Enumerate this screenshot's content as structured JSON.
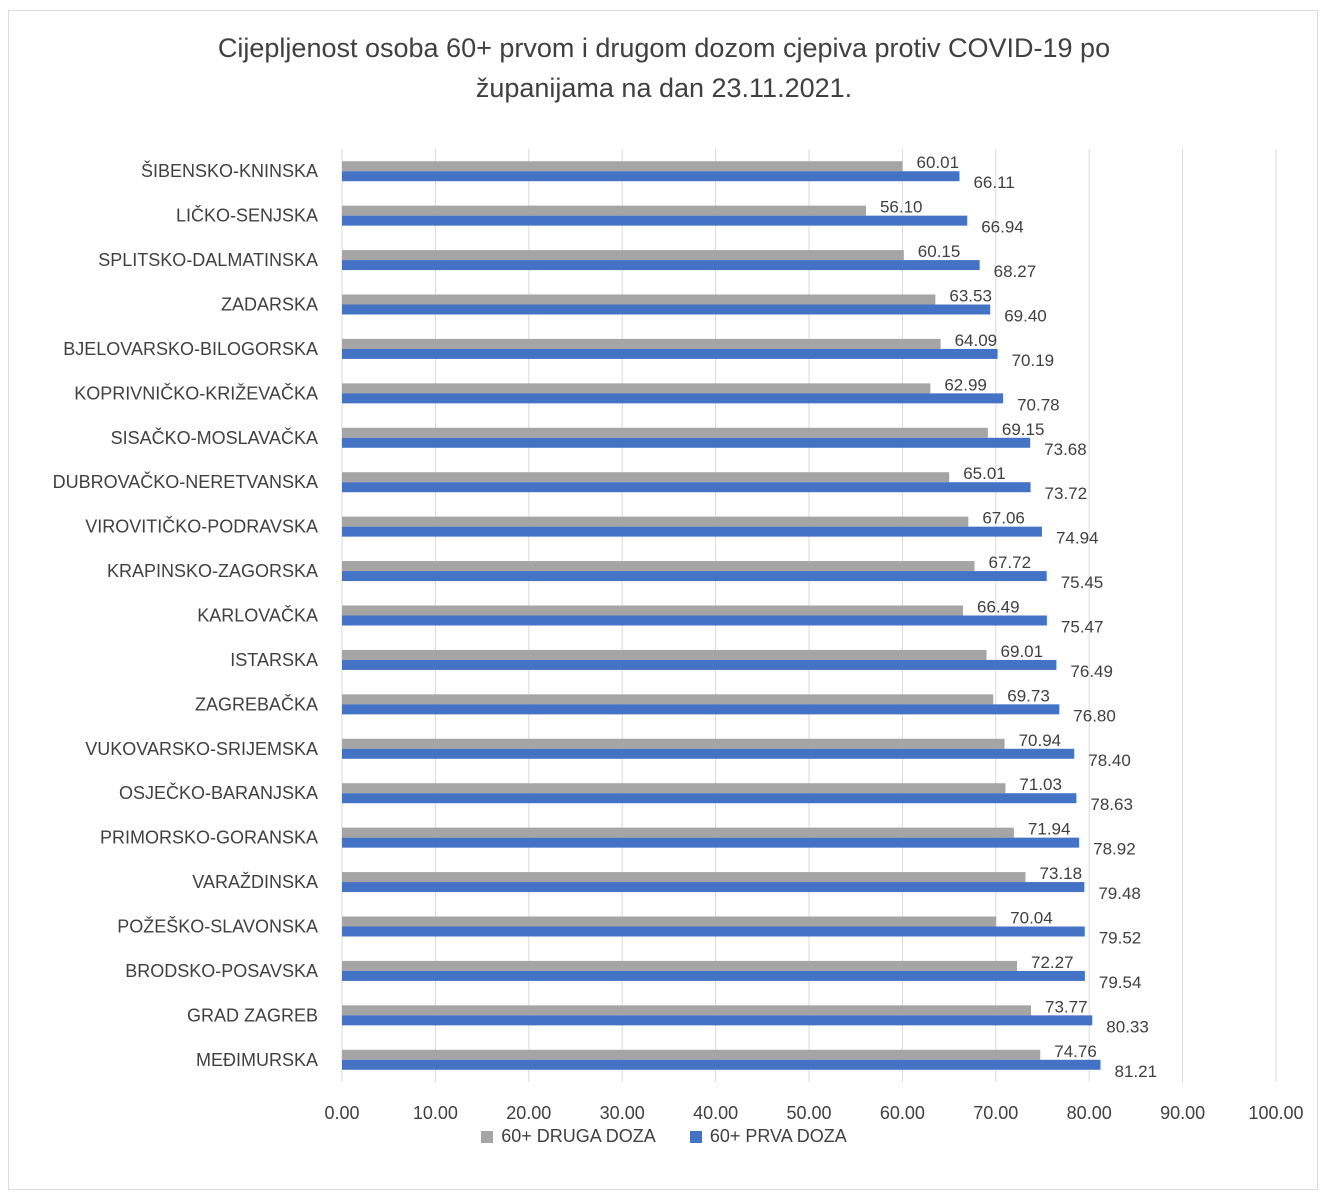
{
  "chart_data": {
    "type": "bar",
    "orientation": "horizontal",
    "title": "Cijepljenost osoba 60+ prvom i drugom dozom cjepiva protiv COVID-19 po\nžupanijama na dan 23.11.2021.",
    "categories": [
      "ŠIBENSKO-KNINSKA",
      "LIČKO-SENJSKA",
      "SPLITSKO-DALMATINSKA",
      "ZADARSKA",
      "BJELOVARSKO-BILOGORSKA",
      "KOPRIVNIČKO-KRIŽEVAČKA",
      "SISAČKO-MOSLAVAČKA",
      "DUBROVAČKO-NERETVANSKA",
      "VIROVITIČKO-PODRAVSKA",
      "KRAPINSKO-ZAGORSKA",
      "KARLOVAČKA",
      "ISTARSKA",
      "ZAGREBAČKA",
      "VUKOVARSKO-SRIJEMSKA",
      "OSJEČKO-BARANJSKA",
      "PRIMORSKO-GORANSKA",
      "VARAŽDINSKA",
      "POŽEŠKO-SLAVONSKA",
      "BRODSKO-POSAVSKA",
      "GRAD ZAGREB",
      "MEĐIMURSKA"
    ],
    "series": [
      {
        "name": "60+ DRUGA DOZA",
        "color": "#a5a5a5",
        "values": [
          60.01,
          56.1,
          60.15,
          63.53,
          64.09,
          62.99,
          69.15,
          65.01,
          67.06,
          67.72,
          66.49,
          69.01,
          69.73,
          70.94,
          71.03,
          71.94,
          73.18,
          70.04,
          72.27,
          73.77,
          74.76
        ]
      },
      {
        "name": "60+ PRVA DOZA",
        "color": "#4472c4",
        "values": [
          66.11,
          66.94,
          68.27,
          69.4,
          70.19,
          70.78,
          73.68,
          73.72,
          74.94,
          75.45,
          75.47,
          76.49,
          76.8,
          78.4,
          78.63,
          78.92,
          79.48,
          79.52,
          79.54,
          80.33,
          81.21
        ]
      }
    ],
    "xlim": [
      0,
      100
    ],
    "xticks": [
      "0.00",
      "10.00",
      "20.00",
      "30.00",
      "40.00",
      "50.00",
      "60.00",
      "70.00",
      "80.00",
      "90.00",
      "100.00"
    ],
    "grid": "vertical",
    "legend": "bottom",
    "data_labels": true
  },
  "legend": {
    "items": [
      "60+ DRUGA DOZA",
      "60+ PRVA DOZA"
    ]
  }
}
